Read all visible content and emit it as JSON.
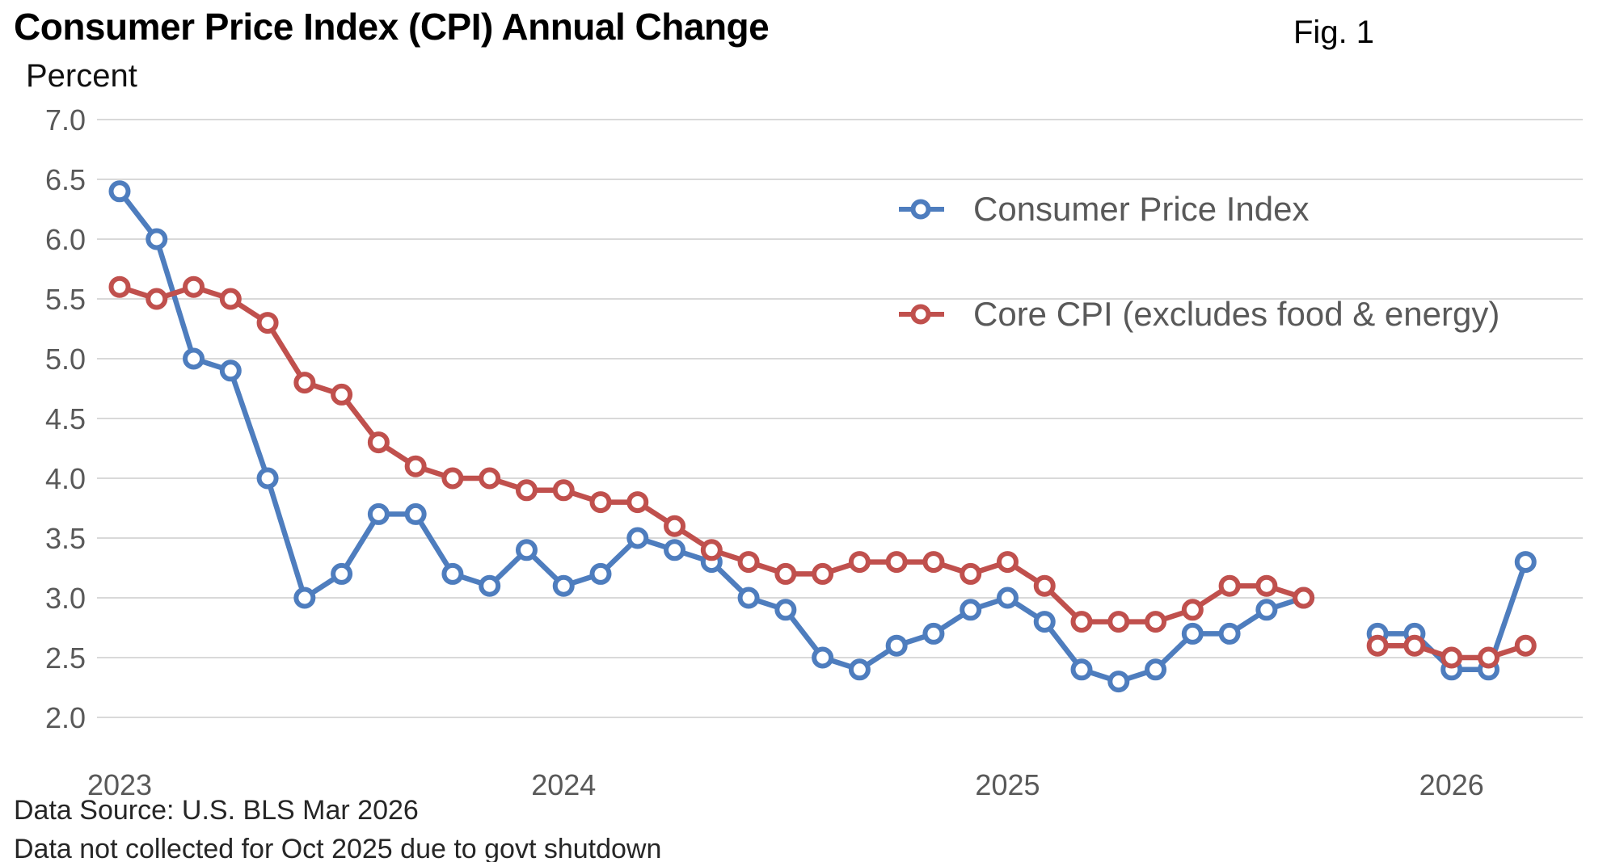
{
  "header": {
    "title": "Consumer Price Index (CPI) Annual Change",
    "fig_label": "Fig. 1",
    "unit_label": "Percent"
  },
  "footnotes": [
    "Data Source: U.S. BLS Mar 2026",
    "Data not collected for Oct 2025 due to govt shutdown"
  ],
  "colors": {
    "cpi_line": "#4E7DBE",
    "core_line": "#C0504D",
    "gridline": "#D9D9D9",
    "axis_text": "#595959",
    "title_text": "#000000",
    "note_text": "#262626",
    "marker_fill": "#FFFFFF"
  },
  "chart_data": {
    "type": "line",
    "title": "Consumer Price Index (CPI) Annual Change",
    "xlabel": "",
    "ylabel": "Percent",
    "ylim": [
      2.0,
      7.0
    ],
    "ytick_step": 0.5,
    "yticks": [
      7.0,
      6.5,
      6.0,
      5.5,
      5.0,
      4.5,
      4.0,
      3.5,
      3.0,
      2.5,
      2.0
    ],
    "grid": "horizontal",
    "legend_position": "inside-top-right",
    "marker_style": "open-circle",
    "gap_months": [
      "Oct 2025"
    ],
    "months": [
      "Jan 2023",
      "Feb 2023",
      "Mar 2023",
      "Apr 2023",
      "May 2023",
      "Jun 2023",
      "Jul 2023",
      "Aug 2023",
      "Sep 2023",
      "Oct 2023",
      "Nov 2023",
      "Dec 2023",
      "Jan 2024",
      "Feb 2024",
      "Mar 2024",
      "Apr 2024",
      "May 2024",
      "Jun 2024",
      "Jul 2024",
      "Aug 2024",
      "Sep 2024",
      "Oct 2024",
      "Nov 2024",
      "Dec 2024",
      "Jan 2025",
      "Feb 2025",
      "Mar 2025",
      "Apr 2025",
      "May 2025",
      "Jun 2025",
      "Jul 2025",
      "Aug 2025",
      "Sep 2025",
      "Oct 2025",
      "Nov 2025",
      "Dec 2025",
      "Jan 2026",
      "Feb 2026",
      "Mar 2026"
    ],
    "xticks": [
      {
        "month_index": 0,
        "label": "2023"
      },
      {
        "month_index": 12,
        "label": "2024"
      },
      {
        "month_index": 24,
        "label": "2025"
      },
      {
        "month_index": 36,
        "label": "2026"
      }
    ],
    "series": [
      {
        "name": "Consumer Price Index",
        "color": "#4E7DBE",
        "values": [
          6.4,
          6.0,
          5.0,
          4.9,
          4.0,
          3.0,
          3.2,
          3.7,
          3.7,
          3.2,
          3.1,
          3.4,
          3.1,
          3.2,
          3.5,
          3.4,
          3.3,
          3.0,
          2.9,
          2.5,
          2.4,
          2.6,
          2.7,
          2.9,
          3.0,
          2.8,
          2.4,
          2.3,
          2.4,
          2.7,
          2.7,
          2.9,
          3.0,
          null,
          2.7,
          2.7,
          2.4,
          2.4,
          3.3
        ]
      },
      {
        "name": "Core CPI (excludes food & energy)",
        "color": "#C0504D",
        "values": [
          5.6,
          5.5,
          5.6,
          5.5,
          5.3,
          4.8,
          4.7,
          4.3,
          4.1,
          4.0,
          4.0,
          3.9,
          3.9,
          3.8,
          3.8,
          3.6,
          3.4,
          3.3,
          3.2,
          3.2,
          3.3,
          3.3,
          3.3,
          3.2,
          3.3,
          3.1,
          2.8,
          2.8,
          2.8,
          2.9,
          3.1,
          3.1,
          3.0,
          null,
          2.6,
          2.6,
          2.5,
          2.5,
          2.6
        ]
      }
    ]
  }
}
